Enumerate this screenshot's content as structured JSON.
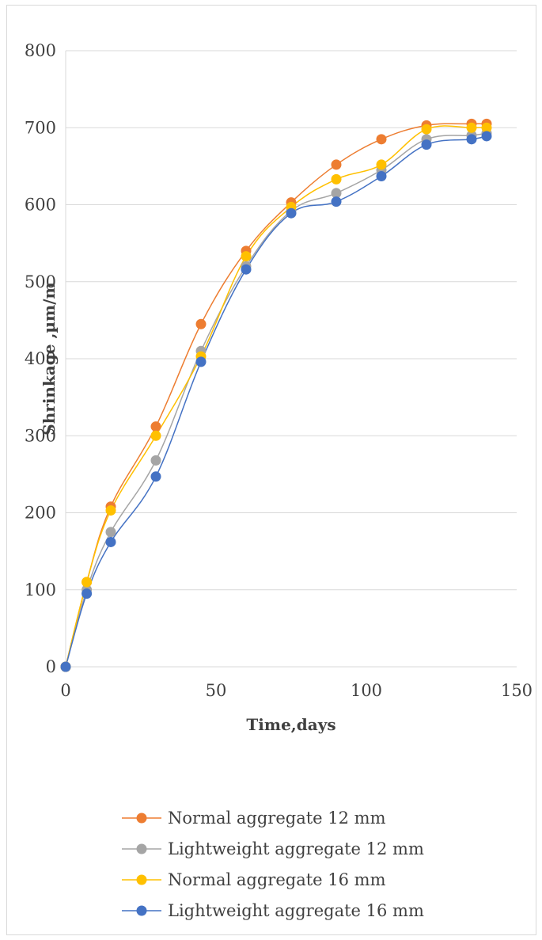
{
  "chart_data": {
    "type": "line",
    "title": "",
    "xlabel": "Time,days",
    "ylabel": "Shrinkage ,µm/m",
    "xlim": [
      0,
      150
    ],
    "ylim": [
      0,
      800
    ],
    "xticks": [
      0,
      50,
      100,
      150
    ],
    "yticks": [
      0,
      100,
      200,
      300,
      400,
      500,
      600,
      700,
      800
    ],
    "grid": "horizontal",
    "legend_position": "bottom",
    "x": [
      0,
      7,
      15,
      30,
      45,
      60,
      75,
      90,
      105,
      120,
      135,
      140
    ],
    "series": [
      {
        "name": "Normal aggregate 12 mm",
        "color": "#ed7d31",
        "values": [
          0,
          110,
          208,
          312,
          445,
          540,
          603,
          652,
          685,
          703,
          705,
          705
        ]
      },
      {
        "name": "Lightweight aggregate 12 mm",
        "color": "#a5a5a5",
        "values": [
          0,
          100,
          175,
          268,
          410,
          520,
          592,
          615,
          645,
          685,
          690,
          693
        ]
      },
      {
        "name": "Normal aggregate 16 mm",
        "color": "#ffc000",
        "values": [
          0,
          110,
          203,
          300,
          403,
          533,
          597,
          633,
          652,
          698,
          700,
          700
        ]
      },
      {
        "name": "Lightweight aggregate 16 mm",
        "color": "#4472c4",
        "values": [
          0,
          95,
          162,
          247,
          396,
          516,
          589,
          604,
          637,
          678,
          685,
          689
        ]
      }
    ]
  }
}
